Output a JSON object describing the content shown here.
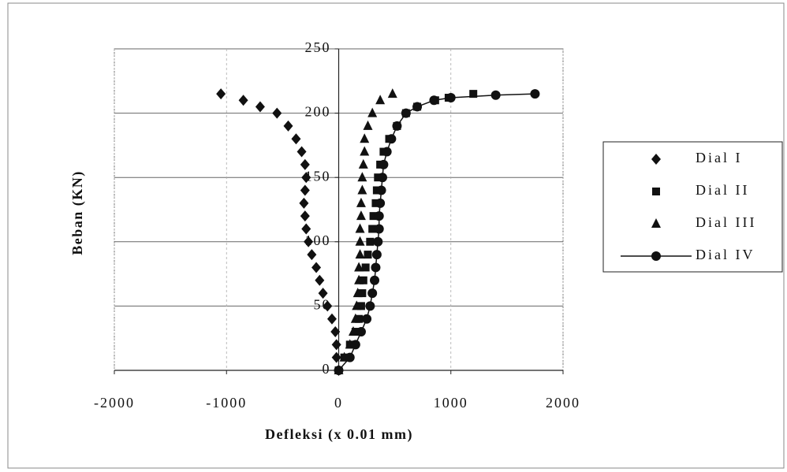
{
  "chart_data": {
    "type": "scatter",
    "x_label": "Defleksi (x 0.01 mm)",
    "y_label": "Beban (KN)",
    "xlim": [
      -2000,
      2000
    ],
    "xticks": [
      -2000,
      -1000,
      0,
      1000,
      2000
    ],
    "ylim": [
      0,
      250
    ],
    "yticks": [
      0,
      50,
      100,
      150,
      200,
      250
    ],
    "grid": true,
    "legend": "right",
    "series": [
      {
        "name": "Dial I",
        "color": "#111111",
        "marker": "diamond",
        "line": false,
        "x": [
          0,
          -20,
          -20,
          -30,
          -60,
          -100,
          -140,
          -170,
          -200,
          -240,
          -270,
          -290,
          -300,
          -310,
          -300,
          -290,
          -300,
          -330,
          -380,
          -450,
          -550,
          -700,
          -850,
          -1050
        ],
        "values": [
          0,
          10,
          20,
          30,
          40,
          50,
          60,
          70,
          80,
          90,
          100,
          110,
          120,
          130,
          140,
          150,
          160,
          170,
          180,
          190,
          200,
          205,
          210,
          215
        ]
      },
      {
        "name": "Dial II",
        "color": "#111111",
        "marker": "square",
        "line": false,
        "x": [
          0,
          50,
          100,
          150,
          180,
          200,
          210,
          220,
          240,
          260,
          280,
          300,
          310,
          330,
          340,
          350,
          370,
          400,
          450,
          520,
          600,
          700,
          860,
          980,
          1200
        ],
        "values": [
          0,
          10,
          20,
          30,
          40,
          50,
          60,
          70,
          80,
          90,
          100,
          110,
          120,
          130,
          140,
          150,
          160,
          170,
          180,
          190,
          200,
          205,
          210,
          212,
          215
        ]
      },
      {
        "name": "Dial III",
        "color": "#111111",
        "marker": "triangle",
        "line": false,
        "x": [
          0,
          50,
          100,
          130,
          150,
          160,
          170,
          180,
          180,
          190,
          190,
          190,
          200,
          200,
          210,
          210,
          220,
          230,
          230,
          260,
          300,
          370,
          480
        ],
        "values": [
          0,
          10,
          20,
          30,
          40,
          50,
          60,
          70,
          80,
          90,
          100,
          110,
          120,
          130,
          140,
          150,
          160,
          170,
          180,
          190,
          200,
          210,
          215
        ]
      },
      {
        "name": "Dial IV",
        "color": "#111111",
        "marker": "circle",
        "line": true,
        "x": [
          0,
          100,
          150,
          200,
          250,
          280,
          300,
          320,
          330,
          340,
          350,
          360,
          360,
          370,
          380,
          390,
          400,
          430,
          470,
          520,
          600,
          700,
          850,
          1000,
          1400,
          1750
        ],
        "values": [
          0,
          10,
          20,
          30,
          40,
          50,
          60,
          70,
          80,
          90,
          100,
          110,
          120,
          130,
          140,
          150,
          160,
          170,
          180,
          190,
          200,
          205,
          210,
          212,
          214,
          215
        ]
      }
    ]
  }
}
